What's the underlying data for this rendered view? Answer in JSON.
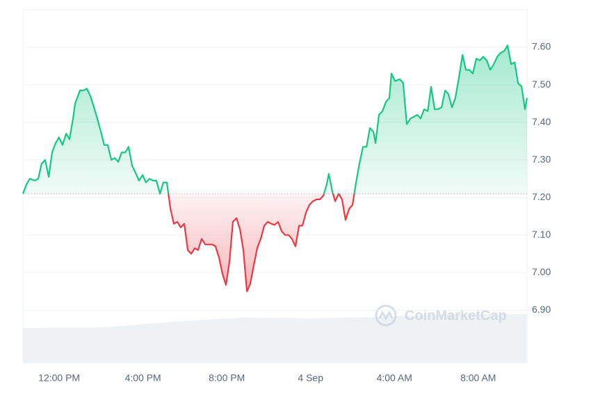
{
  "chart_data": {
    "type": "line",
    "x": [
      10.27,
      10.44,
      10.6,
      10.83,
      11.0,
      11.16,
      11.33,
      11.5,
      11.66,
      11.83,
      11.99,
      12.16,
      12.33,
      12.49,
      12.66,
      12.76,
      12.99,
      13.16,
      13.32,
      13.49,
      13.66,
      13.82,
      13.99,
      14.15,
      14.32,
      14.49,
      14.65,
      14.82,
      14.98,
      15.15,
      15.31,
      15.48,
      15.65,
      15.81,
      15.98,
      16.14,
      16.31,
      16.48,
      16.64,
      16.81,
      16.97,
      17.14,
      17.31,
      17.47,
      17.64,
      17.8,
      17.97,
      18.14,
      18.3,
      18.47,
      18.63,
      18.8,
      18.97,
      19.13,
      19.3,
      19.46,
      19.63,
      19.8,
      19.96,
      20.13,
      20.29,
      20.46,
      20.63,
      20.79,
      20.96,
      21.12,
      21.29,
      21.45,
      21.62,
      21.79,
      21.95,
      22.12,
      22.28,
      22.45,
      22.62,
      22.78,
      22.95,
      23.11,
      23.28,
      23.45,
      23.61,
      23.78,
      23.94,
      24.11,
      24.28,
      24.44,
      24.61,
      24.77,
      24.87,
      25.04,
      25.17,
      25.34,
      25.5,
      25.67,
      25.84,
      26.0,
      26.17,
      26.33,
      26.5,
      26.67,
      26.83,
      27.0,
      27.1,
      27.26,
      27.43,
      27.6,
      27.76,
      27.86,
      28.03,
      28.26,
      28.42,
      28.59,
      28.76,
      28.92,
      29.09,
      29.25,
      29.42,
      29.59,
      29.75,
      29.92,
      30.08,
      30.25,
      30.42,
      30.58,
      30.75,
      30.91,
      31.08,
      31.25,
      31.41,
      31.58,
      31.74,
      31.91,
      32.08,
      32.24,
      32.41,
      32.57,
      32.74,
      32.91,
      33.07,
      33.24,
      33.4,
      33.57,
      33.74,
      33.9,
      34.07,
      34.23,
      34.33
    ],
    "series": [
      {
        "values": [
          7.21,
          7.235,
          7.25,
          7.245,
          7.25,
          7.29,
          7.3,
          7.255,
          7.32,
          7.345,
          7.36,
          7.34,
          7.37,
          7.355,
          7.41,
          7.45,
          7.485,
          7.485,
          7.49,
          7.47,
          7.44,
          7.41,
          7.375,
          7.34,
          7.34,
          7.3,
          7.305,
          7.295,
          7.32,
          7.32,
          7.335,
          7.285,
          7.265,
          7.245,
          7.26,
          7.24,
          7.25,
          7.245,
          7.245,
          7.21,
          7.24,
          7.24,
          7.17,
          7.13,
          7.135,
          7.12,
          7.13,
          7.06,
          7.05,
          7.065,
          7.06,
          7.09,
          7.075,
          7.075,
          7.075,
          7.07,
          7.04,
          6.995,
          6.967,
          7.03,
          7.135,
          7.145,
          7.115,
          7.06,
          6.95,
          6.97,
          7.02,
          7.065,
          7.09,
          7.125,
          7.135,
          7.13,
          7.127,
          7.135,
          7.11,
          7.1,
          7.1,
          7.09,
          7.07,
          7.125,
          7.125,
          7.16,
          7.18,
          7.19,
          7.195,
          7.195,
          7.205,
          7.235,
          7.263,
          7.215,
          7.19,
          7.21,
          7.195,
          7.14,
          7.17,
          7.18,
          7.24,
          7.29,
          7.335,
          7.335,
          7.385,
          7.375,
          7.345,
          7.42,
          7.43,
          7.455,
          7.465,
          7.53,
          7.51,
          7.515,
          7.505,
          7.395,
          7.41,
          7.415,
          7.42,
          7.41,
          7.435,
          7.43,
          7.495,
          7.435,
          7.435,
          7.44,
          7.485,
          7.475,
          7.44,
          7.465,
          7.52,
          7.58,
          7.54,
          7.54,
          7.53,
          7.57,
          7.565,
          7.575,
          7.565,
          7.54,
          7.555,
          7.575,
          7.585,
          7.59,
          7.605,
          7.555,
          7.56,
          7.505,
          7.495,
          7.435,
          7.465
        ]
      }
    ],
    "up_color": "#16c784",
    "down_color": "#ea3943",
    "reference_line": 7.21,
    "xlim": [
      10.27,
      34.33
    ],
    "xticks": [
      {
        "value": 12,
        "label": "12:00 PM"
      },
      {
        "value": 16,
        "label": "4:00 PM"
      },
      {
        "value": 20,
        "label": "8:00 PM"
      },
      {
        "value": 24,
        "label": "4 Sep"
      },
      {
        "value": 28,
        "label": "4:00 AM"
      },
      {
        "value": 32,
        "label": "8:00 AM"
      }
    ],
    "ylim": [
      6.76,
      7.7
    ],
    "yticks": [
      {
        "value": 6.9,
        "label": "6.90"
      },
      {
        "value": 7.0,
        "label": "7.00"
      },
      {
        "value": 7.1,
        "label": "7.10"
      },
      {
        "value": 7.2,
        "label": "7.20"
      },
      {
        "value": 7.3,
        "label": "7.30"
      },
      {
        "value": 7.4,
        "label": "7.40"
      },
      {
        "value": 7.5,
        "label": "7.50"
      },
      {
        "value": 7.6,
        "label": "7.60"
      }
    ],
    "grid": true,
    "watermark": "CoinMarketCap"
  }
}
